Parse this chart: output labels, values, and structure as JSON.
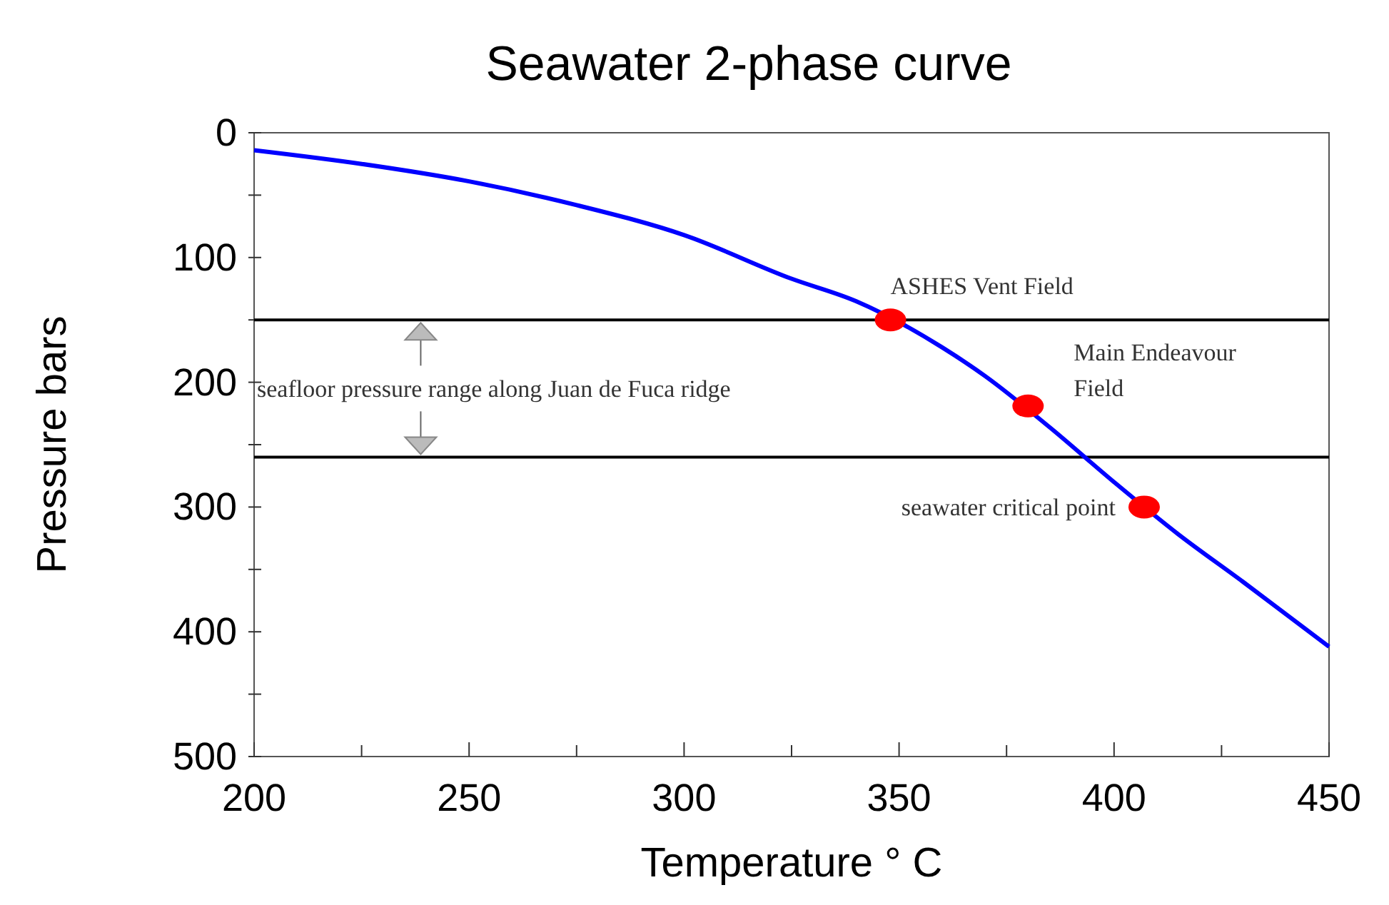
{
  "chart_data": {
    "type": "line",
    "title": "Seawater 2-phase curve",
    "xlabel": "Temperature ° C",
    "ylabel": "Pressure bars",
    "xlim": [
      200,
      450
    ],
    "ylim": [
      500,
      0
    ],
    "xticks": [
      200,
      {
        "value": 225,
        "label": null
      },
      250,
      {
        "value": 275,
        "label": null
      },
      300,
      {
        "value": 325,
        "label": null
      },
      350,
      {
        "value": 375,
        "label": null
      },
      400,
      {
        "value": 425,
        "label": null
      },
      450
    ],
    "yticks": [
      0,
      {
        "value": 50,
        "label": null
      },
      100,
      {
        "value": 150,
        "label": null
      },
      200,
      {
        "value": 250,
        "label": null
      },
      300,
      {
        "value": 350,
        "label": null
      },
      400,
      {
        "value": 450,
        "label": null
      },
      500
    ],
    "series": [
      {
        "color": "#0000ff",
        "x": [
          200,
          225,
          250,
          275,
          300,
          325,
          340,
          360,
          370,
          385,
          400,
          415,
          430,
          450
        ],
        "values": [
          14,
          25,
          39,
          58,
          82,
          117,
          135,
          172,
          195,
          236,
          280,
          322,
          360,
          412
        ]
      },
      {
        "type": "scatter",
        "color": "#ff0000",
        "marker": "circle",
        "x": [
          348,
          380,
          407
        ],
        "values": [
          150,
          219,
          300
        ]
      }
    ],
    "ref_lines": [
      {
        "axis": "y",
        "value": 150,
        "color": "#000000"
      },
      {
        "axis": "y",
        "value": 260,
        "color": "#000000"
      }
    ],
    "annotations": [
      {
        "text": "ASHES Vent Field",
        "x": 348,
        "y": 150
      },
      {
        "text": "Main Endeavour\nField",
        "x": 380,
        "y": 219
      },
      {
        "text": "seawater critical point",
        "x": 407,
        "y": 300
      },
      "seafloor pressure range along Juan de Fuca ridge"
    ],
    "grid": false
  }
}
